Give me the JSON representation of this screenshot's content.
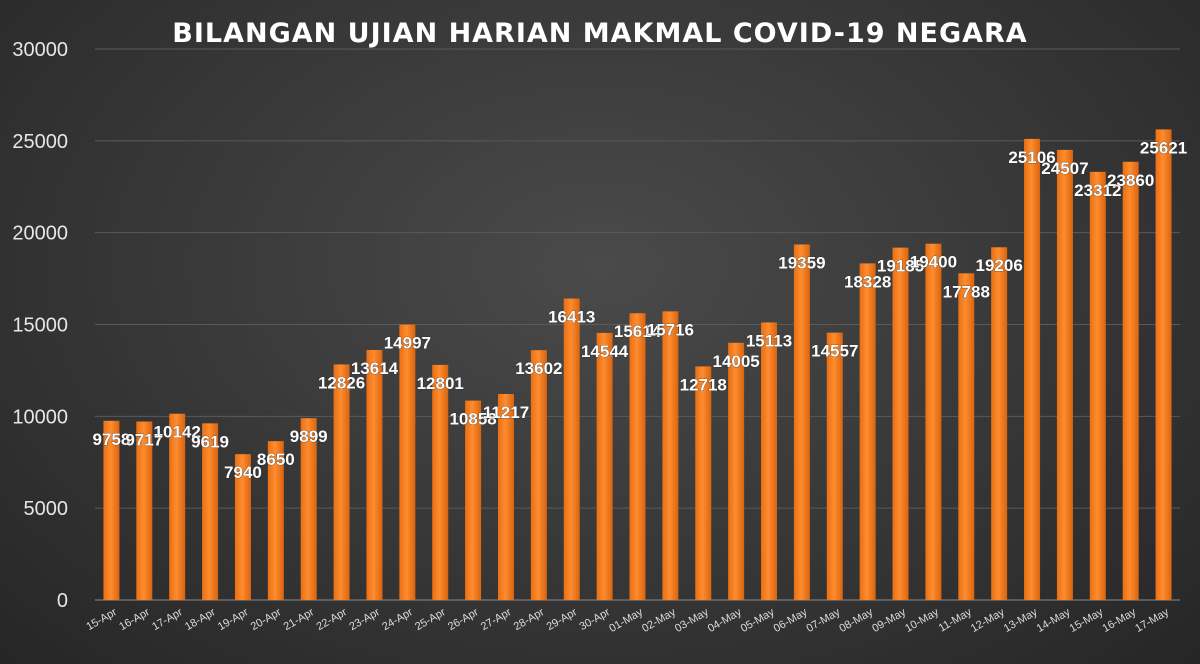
{
  "chart_data": {
    "type": "bar",
    "title": "BILANGAN UJIAN HARIAN MAKMAL COVID-19 NEGARA",
    "xlabel": "",
    "ylabel": "",
    "ylim": [
      0,
      30000
    ],
    "yticks": [
      0,
      5000,
      10000,
      15000,
      20000,
      25000,
      30000
    ],
    "grid": true,
    "legend": "none",
    "bar_color": "#ff8c2e",
    "categories": [
      "15-Apr",
      "16-Apr",
      "17-Apr",
      "18-Apr",
      "19-Apr",
      "20-Apr",
      "21-Apr",
      "22-Apr",
      "23-Apr",
      "24-Apr",
      "25-Apr",
      "26-Apr",
      "27-Apr",
      "28-Apr",
      "29-Apr",
      "30-Apr",
      "01-May",
      "02-May",
      "03-May",
      "04-May",
      "05-May",
      "06-May",
      "07-May",
      "08-May",
      "09-May",
      "10-May",
      "11-May",
      "12-May",
      "13-May",
      "14-May",
      "15-May",
      "16-May",
      "17-May"
    ],
    "values": [
      9758,
      9717,
      10142,
      9619,
      7940,
      8650,
      9899,
      12826,
      13614,
      14997,
      12801,
      10858,
      11217,
      13602,
      16413,
      14544,
      15614,
      15716,
      12718,
      14005,
      15113,
      19359,
      14557,
      18328,
      19185,
      19400,
      17788,
      19206,
      25106,
      24507,
      23312,
      23860,
      25621
    ]
  }
}
